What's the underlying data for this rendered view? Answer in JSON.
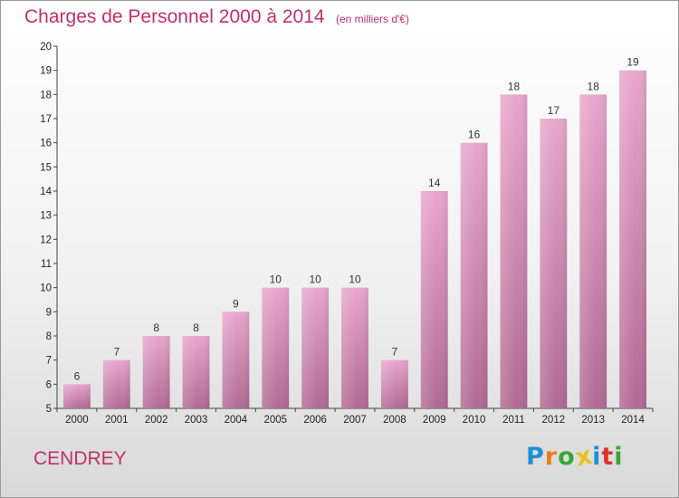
{
  "header": {
    "title": "Charges de Personnel 2000 à 2014",
    "subtitle": "(en milliers d'€)"
  },
  "footer": {
    "commune": "CENDREY",
    "logo_text": "Proxiti"
  },
  "colors": {
    "title": "#c0306a",
    "bar_top": "#e8a6cc",
    "bar_bottom": "#b06a92",
    "logo_letters": [
      "#1e8fd8",
      "#f07a1a",
      "#36a832",
      "#e8c21a",
      "#1e8fd8",
      "#e03030",
      "#36a832"
    ]
  },
  "chart_data": {
    "type": "bar",
    "title": "Charges de Personnel 2000 à 2014",
    "subtitle": "(en milliers d'€)",
    "categories": [
      "2000",
      "2001",
      "2002",
      "2003",
      "2004",
      "2005",
      "2006",
      "2007",
      "2008",
      "2009",
      "2010",
      "2011",
      "2012",
      "2013",
      "2014"
    ],
    "values": [
      6,
      7,
      8,
      8,
      9,
      10,
      10,
      10,
      7,
      14,
      16,
      18,
      17,
      18,
      19
    ],
    "ylim": [
      5,
      20
    ],
    "yticks": [
      5,
      6,
      7,
      8,
      9,
      10,
      11,
      12,
      13,
      14,
      15,
      16,
      17,
      18,
      19,
      20
    ],
    "grid": false,
    "data_labels": true
  }
}
